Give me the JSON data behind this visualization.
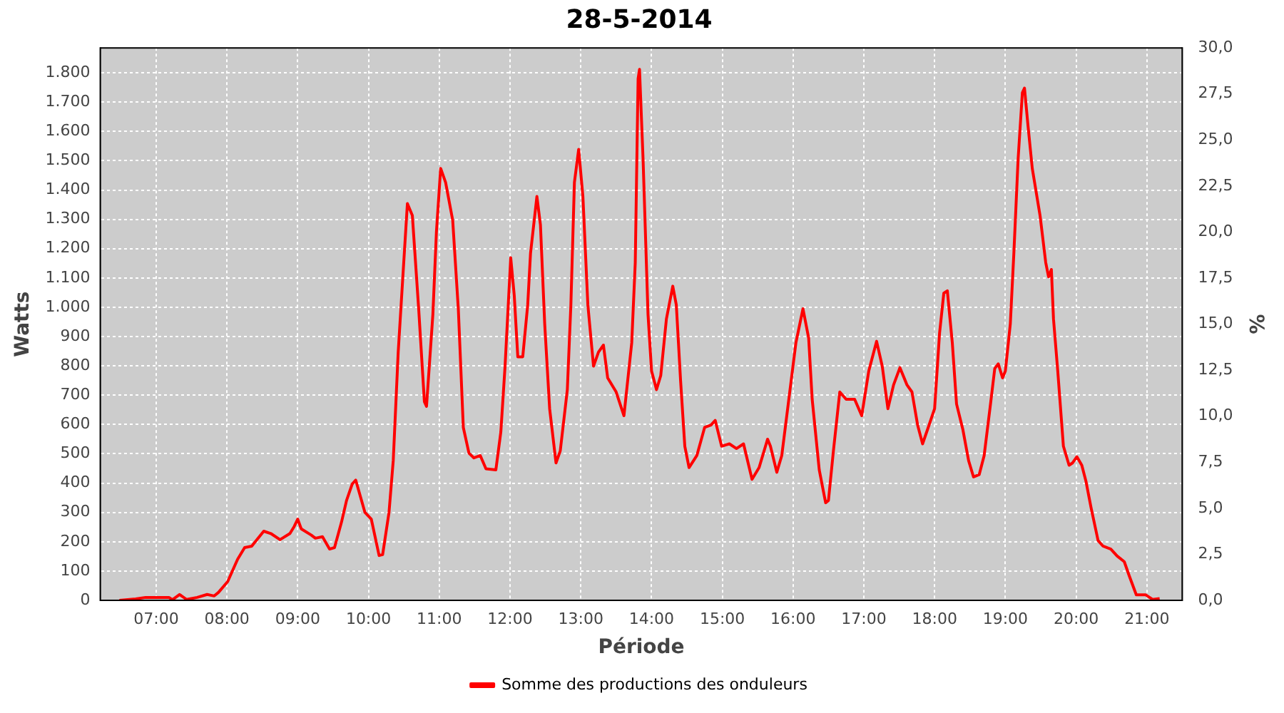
{
  "chart_data": {
    "type": "line",
    "title": "28-5-2014",
    "xlabel": "Période",
    "ylabel": "Watts",
    "y2label": "%",
    "xlim": [
      6.21,
      21.5
    ],
    "xticks": [
      {
        "value": 7,
        "label": "07:00"
      },
      {
        "value": 8,
        "label": "08:00"
      },
      {
        "value": 9,
        "label": "09:00"
      },
      {
        "value": 10,
        "label": "10:00"
      },
      {
        "value": 11,
        "label": "11:00"
      },
      {
        "value": 12,
        "label": "12:00"
      },
      {
        "value": 13,
        "label": "13:00"
      },
      {
        "value": 14,
        "label": "14:00"
      },
      {
        "value": 15,
        "label": "15:00"
      },
      {
        "value": 16,
        "label": "16:00"
      },
      {
        "value": 17,
        "label": "17:00"
      },
      {
        "value": 18,
        "label": "18:00"
      },
      {
        "value": 19,
        "label": "19:00"
      },
      {
        "value": 20,
        "label": "20:00"
      },
      {
        "value": 21,
        "label": "21:00"
      }
    ],
    "ylim": [
      0,
      1885
    ],
    "yticks": [
      0,
      100,
      200,
      300,
      400,
      500,
      600,
      700,
      800,
      900,
      {
        "value": 1000,
        "label": "1.000"
      },
      {
        "value": 1100,
        "label": "1.100"
      },
      {
        "value": 1200,
        "label": "1.200"
      },
      {
        "value": 1300,
        "label": "1.300"
      },
      {
        "value": 1400,
        "label": "1.400"
      },
      {
        "value": 1500,
        "label": "1.500"
      },
      {
        "value": 1600,
        "label": "1.600"
      },
      {
        "value": 1700,
        "label": "1.700"
      },
      {
        "value": 1800,
        "label": "1.800"
      }
    ],
    "y2lim": [
      0,
      30
    ],
    "y2ticks": [
      {
        "value": 0,
        "label": "0,0"
      },
      {
        "value": 2.5,
        "label": "2,5"
      },
      {
        "value": 5,
        "label": "5,0"
      },
      {
        "value": 7.5,
        "label": "7,5"
      },
      {
        "value": 10,
        "label": "10,0"
      },
      {
        "value": 12.5,
        "label": "12,5"
      },
      {
        "value": 15,
        "label": "15,0"
      },
      {
        "value": 17.5,
        "label": "17,5"
      },
      {
        "value": 20,
        "label": "20,0"
      },
      {
        "value": 22.5,
        "label": "22,5"
      },
      {
        "value": 25,
        "label": "25,0"
      },
      {
        "value": 27.5,
        "label": "27,5"
      },
      {
        "value": 30,
        "label": "30,0"
      }
    ],
    "grid": true,
    "legend": "bottom",
    "marker": "none",
    "line_style": "solid",
    "x": [
      6.48,
      6.71,
      6.85,
      7.18,
      7.23,
      7.33,
      7.43,
      7.58,
      7.72,
      7.82,
      7.88,
      8.01,
      8.15,
      8.25,
      8.35,
      8.52,
      8.62,
      8.75,
      8.89,
      8.95,
      9.0,
      9.05,
      9.19,
      9.25,
      9.35,
      9.45,
      9.52,
      9.62,
      9.69,
      9.77,
      9.82,
      9.95,
      10.04,
      10.15,
      10.2,
      10.29,
      10.35,
      10.42,
      10.49,
      10.55,
      10.62,
      10.71,
      10.79,
      10.82,
      10.91,
      10.96,
      11.02,
      11.09,
      11.19,
      11.27,
      11.34,
      11.42,
      11.49,
      11.58,
      11.66,
      11.8,
      11.87,
      11.93,
      12.01,
      12.06,
      12.11,
      12.18,
      12.25,
      12.29,
      12.38,
      12.43,
      12.49,
      12.56,
      12.65,
      12.71,
      12.81,
      12.86,
      12.91,
      12.97,
      13.03,
      13.1,
      13.18,
      13.25,
      13.32,
      13.38,
      13.5,
      13.61,
      13.72,
      13.77,
      13.81,
      13.83,
      13.88,
      13.95,
      14.0,
      14.07,
      14.13,
      14.21,
      14.3,
      14.35,
      14.41,
      14.47,
      14.53,
      14.64,
      14.75,
      14.84,
      14.9,
      14.99,
      15.1,
      15.2,
      15.3,
      15.42,
      15.52,
      15.64,
      15.68,
      15.77,
      15.84,
      15.94,
      16.04,
      16.14,
      16.22,
      16.27,
      16.37,
      16.46,
      16.5,
      16.57,
      16.66,
      16.75,
      16.87,
      16.97,
      17.07,
      17.18,
      17.26,
      17.34,
      17.42,
      17.51,
      17.61,
      17.68,
      17.76,
      17.83,
      17.91,
      18.0,
      18.07,
      18.13,
      18.18,
      18.25,
      18.31,
      18.4,
      18.48,
      18.55,
      18.63,
      18.7,
      18.79,
      18.85,
      18.9,
      18.96,
      19.0,
      19.07,
      19.12,
      19.18,
      19.24,
      19.27,
      19.32,
      19.38,
      19.49,
      19.57,
      19.61,
      19.65,
      19.68,
      19.74,
      19.82,
      19.9,
      19.95,
      20.01,
      20.08,
      20.14,
      20.21,
      20.31,
      20.38,
      20.49,
      20.58,
      20.68,
      20.75,
      20.85,
      20.98,
      21.08,
      21.18
    ],
    "series": [
      {
        "name": "Somme des productions des onduleurs",
        "color": "#ff0000",
        "values": [
          0,
          5,
          10,
          10,
          2,
          20,
          3,
          10,
          20,
          15,
          27,
          64,
          140,
          180,
          185,
          236,
          228,
          207,
          228,
          252,
          277,
          244,
          223,
          212,
          217,
          175,
          180,
          268,
          341,
          397,
          410,
          300,
          277,
          153,
          156,
          300,
          477,
          847,
          1121,
          1354,
          1313,
          992,
          678,
          662,
          976,
          1257,
          1474,
          1426,
          1297,
          992,
          590,
          502,
          486,
          494,
          449,
          445,
          574,
          799,
          1169,
          1040,
          831,
          831,
          1008,
          1185,
          1378,
          1281,
          944,
          654,
          469,
          510,
          719,
          1008,
          1426,
          1539,
          1378,
          1008,
          799,
          847,
          871,
          759,
          711,
          630,
          879,
          1153,
          1780,
          1812,
          1507,
          976,
          783,
          719,
          767,
          960,
          1072,
          1008,
          751,
          526,
          453,
          494,
          590,
          598,
          614,
          526,
          534,
          518,
          534,
          413,
          453,
          550,
          526,
          437,
          494,
          686,
          879,
          995,
          895,
          686,
          445,
          333,
          341,
          510,
          711,
          686,
          686,
          630,
          783,
          884,
          799,
          654,
          735,
          794,
          735,
          711,
          598,
          534,
          590,
          654,
          912,
          1048,
          1056,
          879,
          670,
          582,
          477,
          421,
          429,
          494,
          670,
          791,
          807,
          759,
          783,
          944,
          1185,
          1506,
          1732,
          1748,
          1619,
          1474,
          1313,
          1153,
          1104,
          1129,
          960,
          783,
          526,
          461,
          469,
          490,
          461,
          405,
          317,
          204,
          185,
          175,
          151,
          132,
          84,
          19,
          19,
          3,
          6
        ]
      }
    ]
  }
}
